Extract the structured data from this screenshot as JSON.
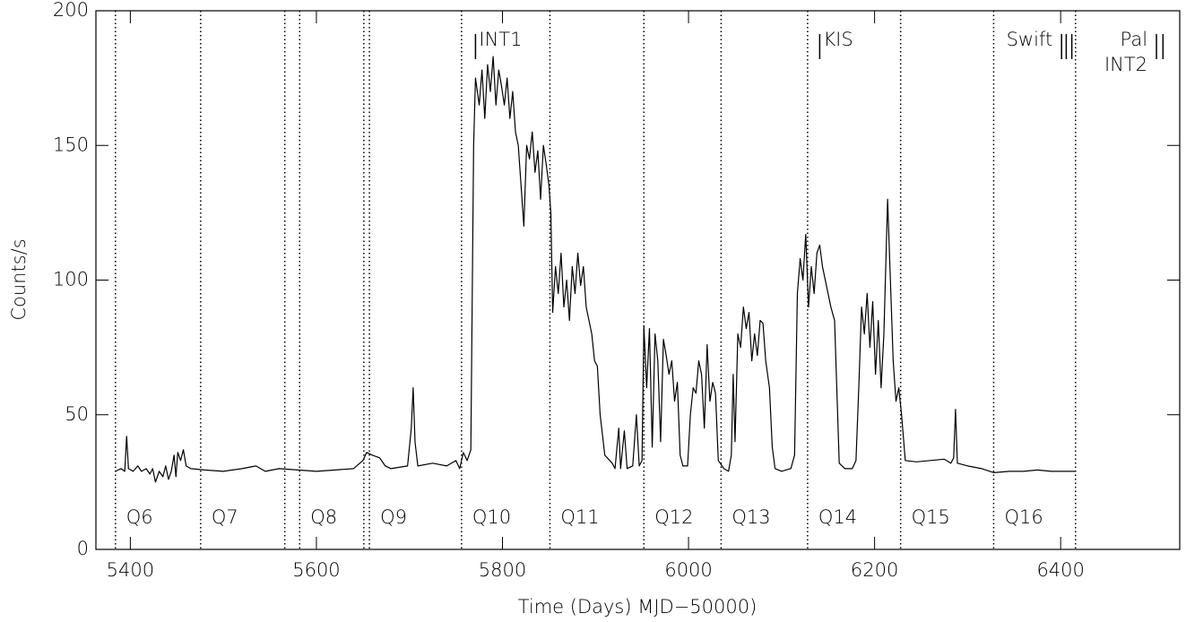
{
  "chart_data": {
    "type": "line",
    "xlabel": "Time (Days) MJD−50000)",
    "ylabel": "Counts/s",
    "xlim": [
      5363,
      6528
    ],
    "ylim": [
      0,
      200
    ],
    "xticks": [
      5400,
      5600,
      5800,
      6000,
      6200,
      6400
    ],
    "yticks": [
      0,
      50,
      100,
      150,
      200
    ],
    "color": "#000000",
    "x": [
      5384,
      5390,
      5394,
      5396,
      5398,
      5403,
      5408,
      5412,
      5417,
      5421,
      5424,
      5427,
      5431,
      5435,
      5438,
      5441,
      5444,
      5447,
      5449,
      5451,
      5454,
      5457,
      5460,
      5465,
      5480,
      5500,
      5520,
      5535,
      5545,
      5560,
      5580,
      5600,
      5620,
      5640,
      5650,
      5654,
      5660,
      5668,
      5674,
      5680,
      5698,
      5702,
      5704,
      5706,
      5709,
      5725,
      5740,
      5750,
      5754,
      5758,
      5762,
      5766,
      5769,
      5771,
      5775,
      5778,
      5781,
      5784,
      5787,
      5790,
      5793,
      5796,
      5799,
      5802,
      5805,
      5808,
      5811,
      5814,
      5817,
      5820,
      5823,
      5826,
      5829,
      5832,
      5835,
      5838,
      5841,
      5844,
      5847,
      5850,
      5852,
      5854,
      5857,
      5860,
      5863,
      5866,
      5869,
      5872,
      5875,
      5878,
      5881,
      5884,
      5887,
      5890,
      5893,
      5896,
      5899,
      5902,
      5905,
      5910,
      5918,
      5921,
      5925,
      5927,
      5931,
      5934,
      5940,
      5944,
      5947,
      5950,
      5952,
      5955,
      5958,
      5961,
      5964,
      5967,
      5970,
      5973,
      5976,
      5979,
      5982,
      5985,
      5988,
      5991,
      5994,
      5999,
      6002,
      6005,
      6008,
      6011,
      6014,
      6017,
      6020,
      6023,
      6026,
      6029,
      6032,
      6038,
      6043,
      6046,
      6048,
      6050,
      6053,
      6056,
      6059,
      6062,
      6065,
      6068,
      6071,
      6074,
      6077,
      6080,
      6083,
      6087,
      6090,
      6093,
      6100,
      6110,
      6114,
      6117,
      6120,
      6123,
      6126,
      6129,
      6132,
      6135,
      6138,
      6141,
      6144,
      6147,
      6150,
      6153,
      6157,
      6162,
      6168,
      6176,
      6180,
      6183,
      6186,
      6189,
      6192,
      6195,
      6198,
      6201,
      6204,
      6207,
      6210,
      6214,
      6217,
      6220,
      6223,
      6226,
      6229,
      6233,
      6245,
      6260,
      6275,
      6282,
      6285,
      6287,
      6289,
      6300,
      6315,
      6328,
      6345,
      6360,
      6375,
      6390,
      6405,
      6416
    ],
    "values": [
      29,
      30,
      29,
      42,
      30,
      29,
      31,
      29,
      30,
      28,
      30,
      25,
      29,
      27,
      31,
      26,
      29,
      35,
      27,
      36,
      33,
      37,
      31,
      30,
      29.5,
      29,
      30,
      31,
      29,
      30,
      29.5,
      29,
      29.5,
      30,
      33,
      36,
      35,
      34,
      31,
      30,
      31,
      45,
      60,
      40,
      31,
      32,
      31,
      33,
      30,
      36,
      33,
      37,
      150,
      175,
      165,
      178,
      160,
      180,
      170,
      183,
      165,
      178,
      172,
      165,
      175,
      160,
      170,
      155,
      150,
      135,
      120,
      150,
      145,
      155,
      140,
      148,
      130,
      150,
      143,
      135,
      125,
      88,
      105,
      95,
      110,
      90,
      100,
      85,
      105,
      95,
      110,
      98,
      105,
      90,
      85,
      80,
      70,
      68,
      50,
      35,
      32,
      30,
      45,
      30,
      44,
      30,
      31,
      50,
      31,
      33,
      83,
      60,
      82,
      38,
      80,
      70,
      40,
      78,
      72,
      65,
      70,
      55,
      62,
      35,
      31,
      31,
      50,
      60,
      58,
      70,
      65,
      45,
      76,
      55,
      62,
      58,
      33,
      30,
      29,
      35,
      65,
      40,
      80,
      75,
      90,
      82,
      88,
      70,
      80,
      72,
      85,
      84,
      70,
      60,
      38,
      30,
      29,
      30,
      35,
      95,
      108,
      100,
      117,
      90,
      105,
      95,
      110,
      113,
      105,
      100,
      95,
      90,
      85,
      32,
      30,
      30,
      33,
      60,
      90,
      80,
      95,
      75,
      92,
      65,
      85,
      60,
      80,
      130,
      100,
      70,
      55,
      60,
      50,
      33,
      32.5,
      33,
      33.5,
      32,
      34,
      52,
      32,
      31,
      30,
      28.5,
      29,
      29,
      29.5,
      29,
      29,
      29
    ],
    "vlines": [
      5384,
      5475.6,
      5566,
      5582,
      5651,
      5657,
      5756,
      5851,
      5952,
      6035,
      6128,
      6228,
      6328,
      6416
    ],
    "quarters": [
      {
        "label": "Q6",
        "start": 5384
      },
      {
        "label": "Q7",
        "start": 5475.6
      },
      {
        "label": "Q8",
        "start": 5582
      },
      {
        "label": "Q9",
        "start": 5657
      },
      {
        "label": "Q10",
        "start": 5756
      },
      {
        "label": "Q11",
        "start": 5851
      },
      {
        "label": "Q12",
        "start": 5952
      },
      {
        "label": "Q13",
        "start": 6035
      },
      {
        "label": "Q14",
        "start": 6128
      },
      {
        "label": "Q15",
        "start": 6228
      },
      {
        "label": "Q16",
        "start": 6328
      }
    ],
    "observations": [
      {
        "labels": [
          "INT1"
        ],
        "times": [
          5771
        ]
      },
      {
        "labels": [
          "KIS"
        ],
        "times": [
          6141
        ]
      },
      {
        "labels": [
          "Swift"
        ],
        "times": [
          6401,
          6406,
          6412
        ]
      },
      {
        "labels": [
          "Pal",
          "INT2"
        ],
        "times": [
          6503,
          6510
        ]
      }
    ]
  }
}
